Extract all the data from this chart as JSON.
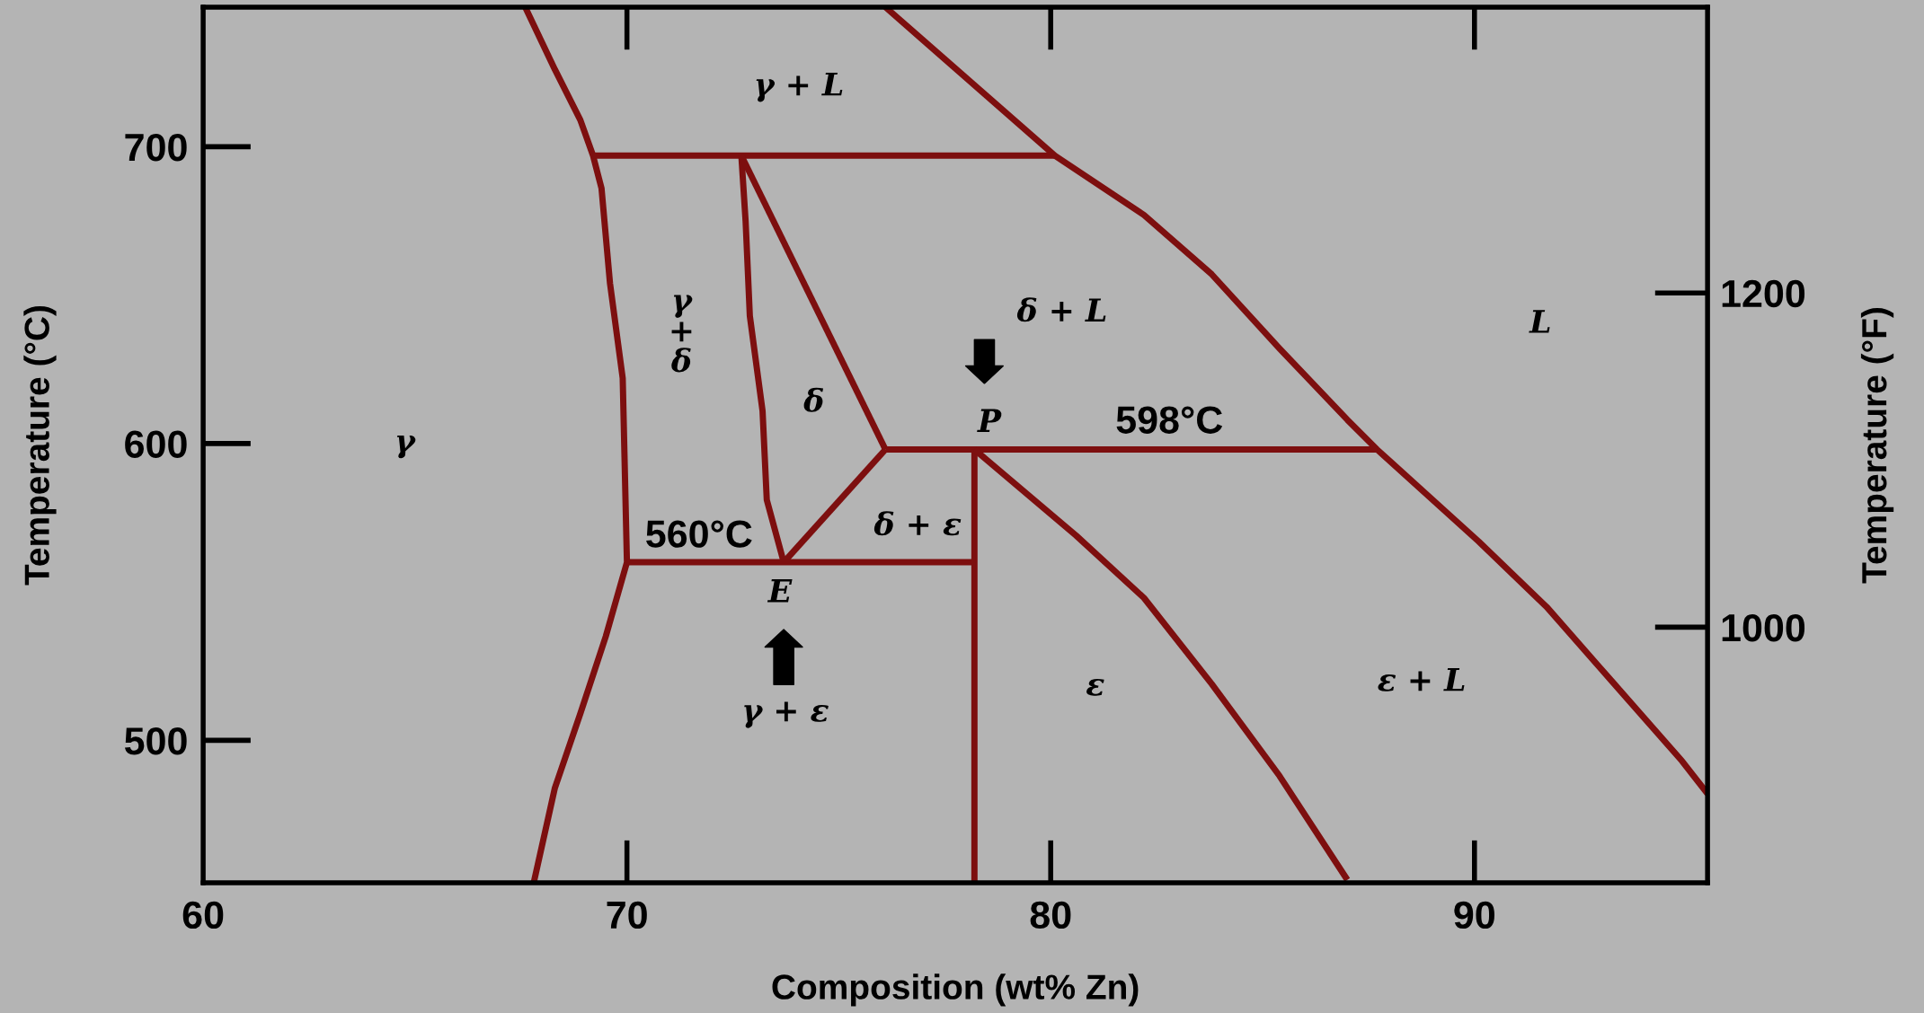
{
  "chart_data": {
    "type": "line",
    "xlabel": "Composition (wt% Zn)",
    "ylabel": "Temperature (°C)",
    "y2label": "Temperature (°F)",
    "xlim": [
      60,
      95.5
    ],
    "ylim": [
      452,
      747
    ],
    "xticks": [
      60,
      70,
      80,
      90
    ],
    "yticks": [
      500,
      600,
      700
    ],
    "y2lim": [
      847,
      1371
    ],
    "y2ticks": [
      1000,
      1200
    ],
    "line_style": "solid",
    "marker": "none",
    "series": [
      {
        "color": "#7d0f0f",
        "x": [
          67.6,
          68.3,
          68.9,
          69.2,
          69.4,
          69.6,
          69.9,
          70.0,
          69.5,
          68.9,
          68.3,
          67.8
        ],
        "values": [
          747,
          726,
          709,
          697,
          686,
          654,
          622,
          560,
          535,
          509,
          484,
          452
        ]
      },
      {
        "color": "#7d0f0f",
        "x": [
          69.2,
          80.1
        ],
        "values": [
          697,
          697
        ]
      },
      {
        "color": "#7d0f0f",
        "x": [
          76.1,
          80.1,
          82.2,
          83.8,
          85.4,
          87.0,
          87.7,
          90.1,
          91.7,
          93.3,
          94.9,
          95.5
        ],
        "values": [
          747,
          697,
          677,
          657,
          632,
          608,
          598,
          567,
          545,
          519,
          493,
          482
        ]
      },
      {
        "color": "#7d0f0f",
        "x": [
          72.7,
          72.8,
          72.9,
          73.2,
          73.3,
          73.7
        ],
        "values": [
          697,
          675,
          643,
          611,
          581,
          560
        ]
      },
      {
        "color": "#7d0f0f",
        "x": [
          72.7,
          76.1
        ],
        "values": [
          697,
          598
        ]
      },
      {
        "color": "#7d0f0f",
        "x": [
          73.7,
          76.1
        ],
        "values": [
          560,
          598
        ]
      },
      {
        "color": "#7d0f0f",
        "x": [
          76.1,
          87.7
        ],
        "values": [
          598,
          598
        ]
      },
      {
        "color": "#7d0f0f",
        "x": [
          70.0,
          78.2
        ],
        "values": [
          560,
          560
        ]
      },
      {
        "color": "#7d0f0f",
        "x": [
          78.2,
          78.2
        ],
        "values": [
          598,
          452
        ]
      },
      {
        "color": "#7d0f0f",
        "x": [
          78.2,
          80.6,
          82.2,
          83.8,
          85.4,
          87.0
        ],
        "values": [
          598,
          569,
          548,
          519,
          488,
          453
        ]
      }
    ],
    "annotations": [
      "γ + L",
      "γ\n+\nδ",
      "δ",
      "δ + L",
      "L",
      "γ",
      {
        "text": "P",
        "x": 78.2,
        "y": 598
      },
      {
        "text": "598°C",
        "x": 82.8,
        "y": 598
      },
      {
        "text": "560°C",
        "x": 71.7,
        "y": 560
      },
      "δ + ε",
      {
        "text": "E",
        "x": 73.7,
        "y": 560
      },
      "γ + ε",
      "ε",
      "ε + L"
    ]
  }
}
